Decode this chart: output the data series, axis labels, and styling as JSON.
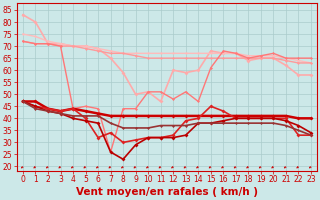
{
  "background_color": "#cce8e8",
  "grid_color": "#aacccc",
  "xlabel": "Vent moyen/en rafales ( km/h )",
  "xlabel_color": "#cc0000",
  "xlabel_fontsize": 7.5,
  "x_ticks": [
    0,
    1,
    2,
    3,
    4,
    5,
    6,
    7,
    8,
    9,
    10,
    11,
    12,
    13,
    14,
    15,
    16,
    17,
    18,
    19,
    20,
    21,
    22,
    23
  ],
  "ylim": [
    18,
    88
  ],
  "yticks": [
    20,
    25,
    30,
    35,
    40,
    45,
    50,
    55,
    60,
    65,
    70,
    75,
    80,
    85
  ],
  "tick_color": "#cc0000",
  "tick_fontsize": 5.5,
  "y_data": [
    [
      83,
      80,
      71,
      71,
      70,
      70,
      69,
      65,
      59,
      50,
      51,
      47,
      60,
      59,
      60,
      68,
      67,
      67,
      64,
      65,
      65,
      62,
      58,
      58
    ],
    [
      75,
      74,
      72,
      71,
      70,
      70,
      69,
      68,
      67,
      67,
      67,
      67,
      67,
      67,
      67,
      67,
      67,
      67,
      66,
      66,
      66,
      65,
      64,
      63
    ],
    [
      72,
      71,
      71,
      70,
      70,
      69,
      68,
      67,
      67,
      66,
      65,
      65,
      65,
      65,
      65,
      65,
      65,
      65,
      65,
      65,
      65,
      64,
      63,
      63
    ],
    [
      72,
      71,
      71,
      70,
      44,
      45,
      44,
      26,
      44,
      44,
      51,
      51,
      48,
      51,
      47,
      61,
      68,
      67,
      65,
      66,
      67,
      65,
      65,
      65
    ],
    [
      47,
      47,
      44,
      43,
      44,
      43,
      42,
      41,
      41,
      41,
      41,
      41,
      41,
      41,
      41,
      41,
      41,
      41,
      41,
      41,
      41,
      41,
      40,
      40
    ],
    [
      47,
      45,
      44,
      43,
      44,
      40,
      32,
      34,
      30,
      31,
      32,
      32,
      33,
      39,
      40,
      45,
      43,
      40,
      40,
      40,
      40,
      40,
      33,
      33
    ],
    [
      47,
      45,
      43,
      42,
      40,
      39,
      38,
      26,
      23,
      29,
      32,
      32,
      32,
      33,
      38,
      38,
      39,
      40,
      40,
      40,
      40,
      39,
      37,
      34
    ],
    [
      47,
      44,
      43,
      42,
      41,
      41,
      41,
      38,
      36,
      36,
      36,
      37,
      37,
      37,
      38,
      38,
      38,
      38,
      38,
      38,
      38,
      37,
      35,
      33
    ]
  ],
  "line_colors": [
    "#ffaaaa",
    "#ffbbbb",
    "#ff9999",
    "#ff7777",
    "#cc0000",
    "#dd2222",
    "#bb0000",
    "#993333"
  ],
  "linewidths": [
    1.2,
    1.0,
    1.0,
    1.0,
    1.8,
    1.2,
    1.2,
    1.2
  ],
  "markersizes": [
    2.0,
    1.5,
    1.5,
    1.5,
    2.0,
    2.0,
    2.0,
    1.5
  ]
}
